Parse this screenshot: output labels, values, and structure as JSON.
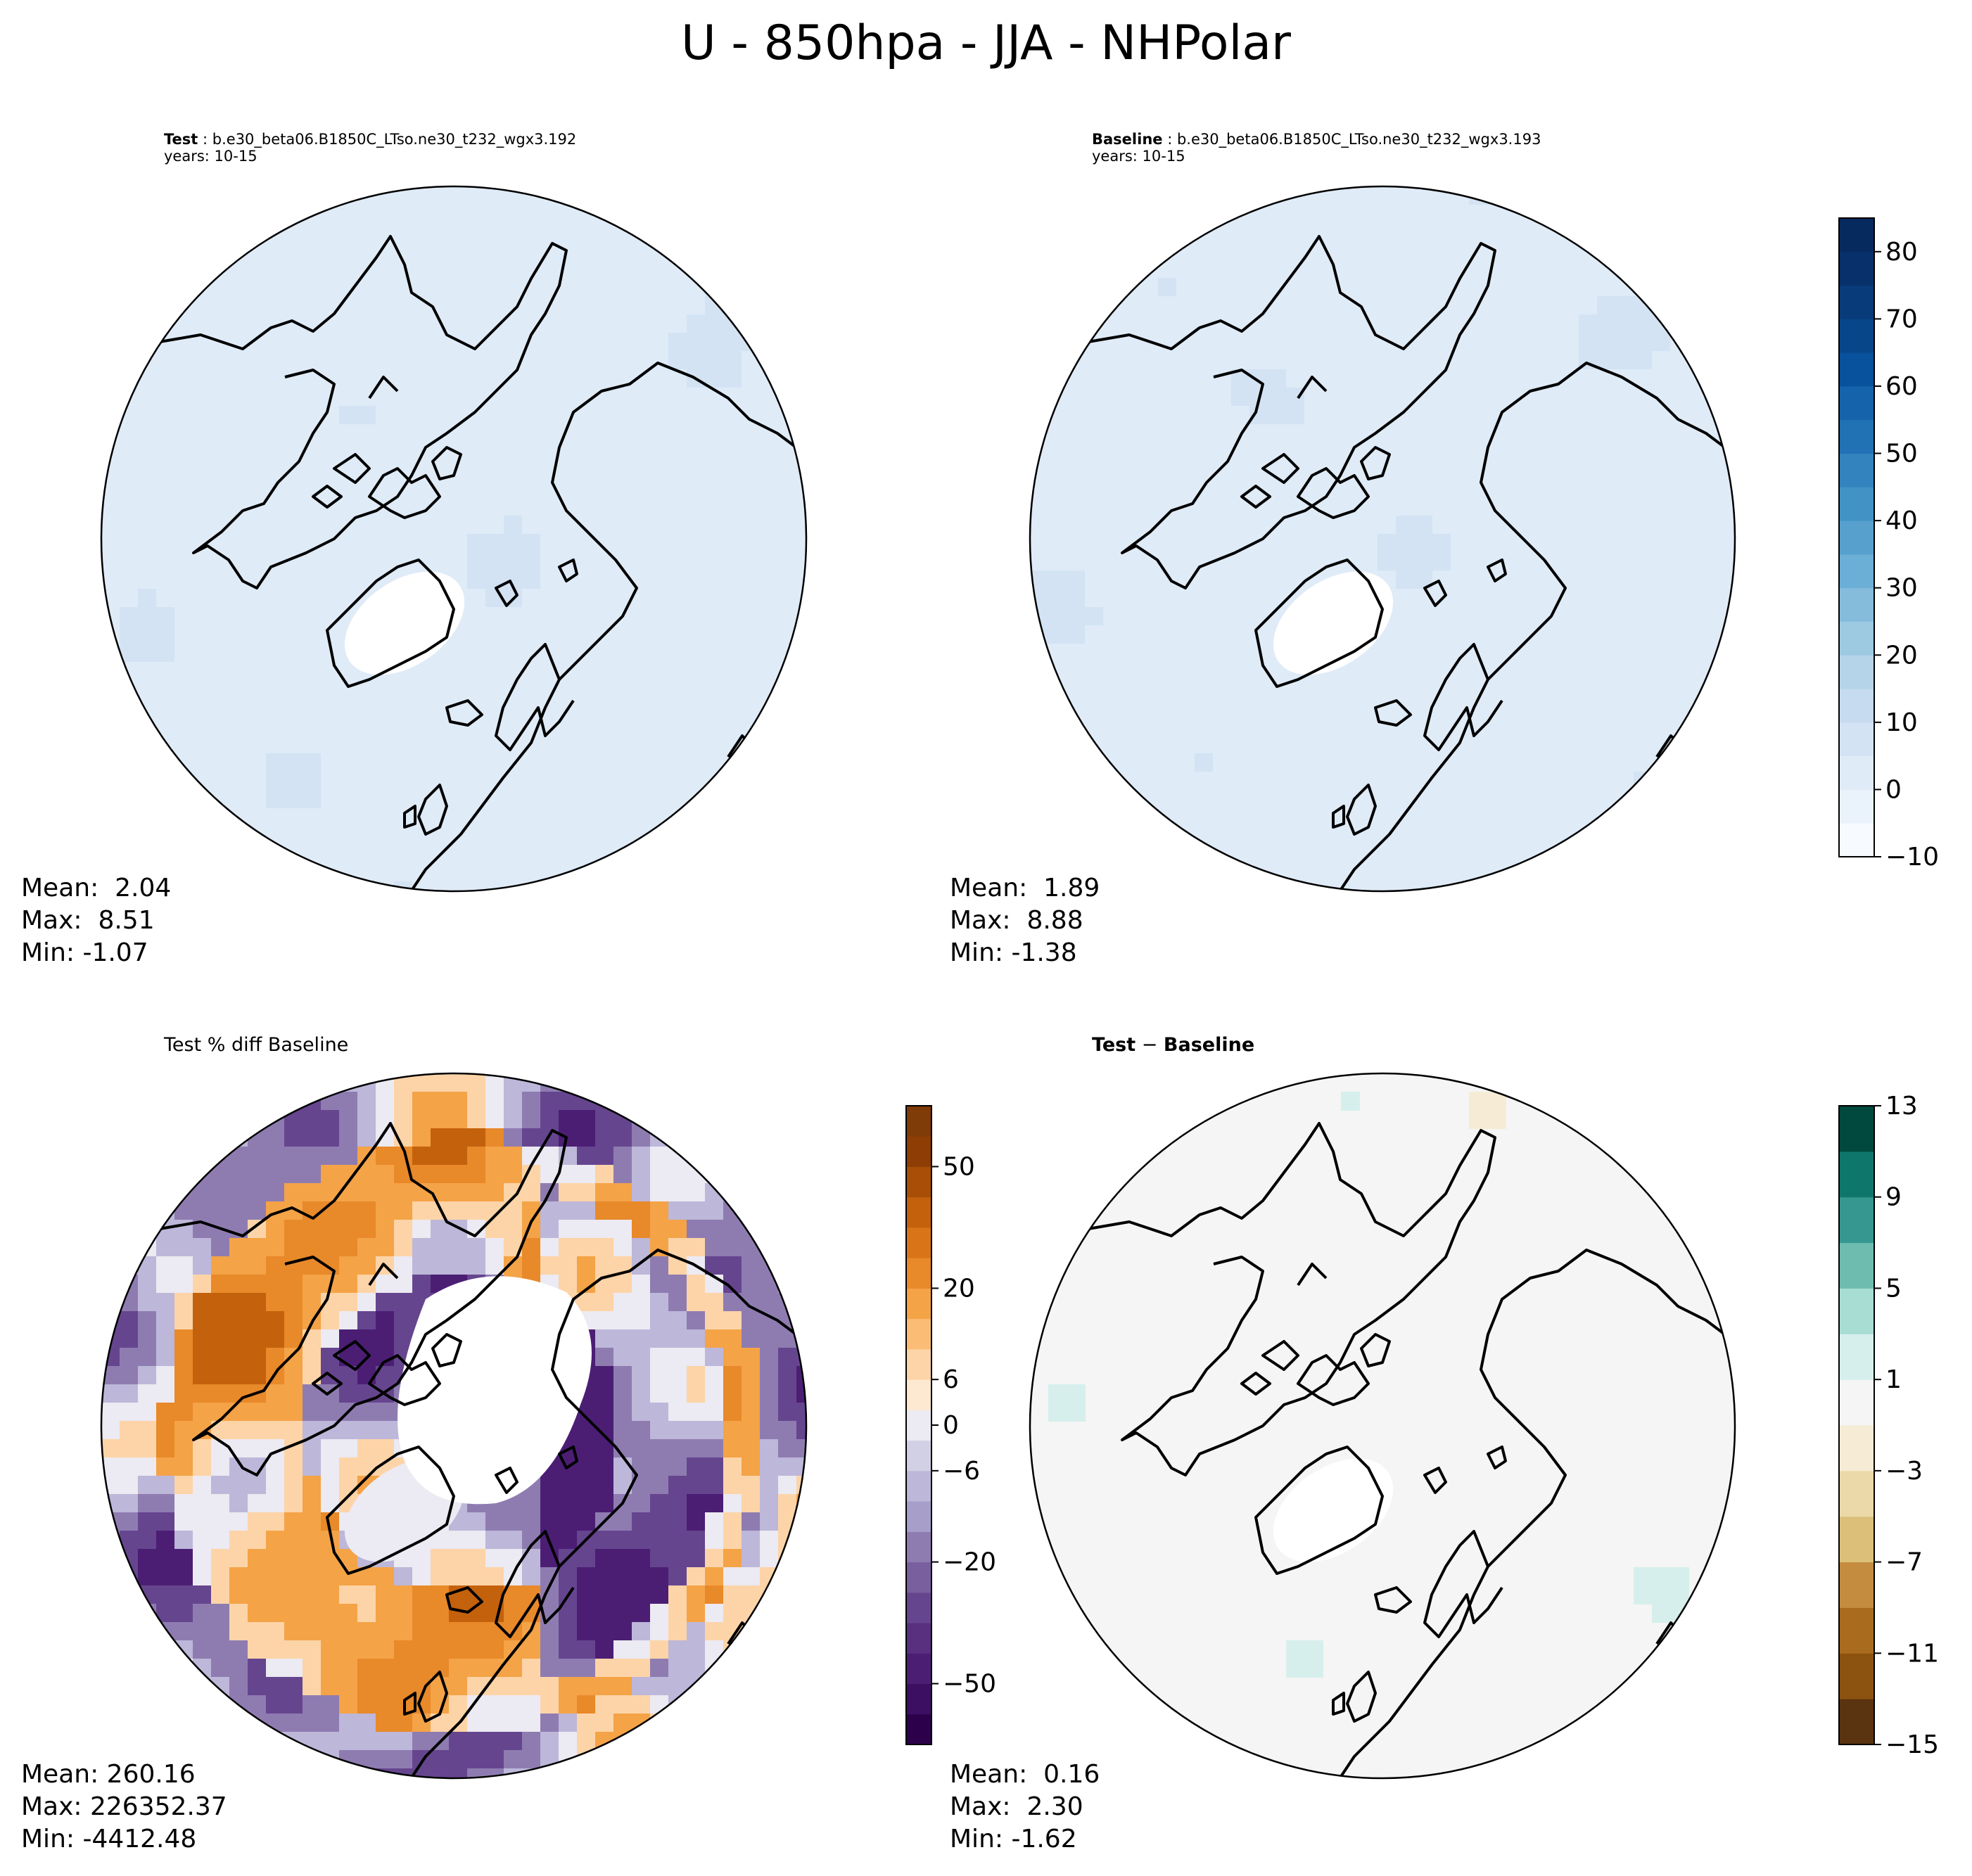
{
  "figure": {
    "suptitle": "U - 850hpa - JJA - NHPolar"
  },
  "panels": {
    "test": {
      "label": "Test",
      "case": "b.e30_beta06.B1850C_LTso.ne30_t232_wgx3.192",
      "years": "years: 10-15",
      "stats": {
        "mean": "Mean:  2.04",
        "max": "Max:  8.51",
        "min": "Min: -1.07"
      }
    },
    "baseline": {
      "label": "Baseline",
      "case": "b.e30_beta06.B1850C_LTso.ne30_t232_wgx3.193",
      "years": "years: 10-15",
      "stats": {
        "mean": "Mean:  1.89",
        "max": "Max:  8.88",
        "min": "Min: -1.38"
      }
    },
    "pctdiff": {
      "title": "Test % diff Baseline",
      "stats": {
        "mean": "Mean: 260.16",
        "max": "Max: 226352.37",
        "min": "Min: -4412.48"
      }
    },
    "diff": {
      "title_a": "Test",
      "title_sep": " − ",
      "title_b": "Baseline",
      "stats": {
        "mean": "Mean:  0.16",
        "max": "Max:  2.30",
        "min": "Min: -1.62"
      }
    }
  },
  "chart_data": [
    {
      "type": "heatmap",
      "name": "test",
      "projection": "north-polar-stereographic",
      "field_range_approx": [
        -1.07,
        8.51
      ],
      "colormap": "Blues",
      "colorbar": "shared with baseline"
    },
    {
      "type": "heatmap",
      "name": "baseline",
      "projection": "north-polar-stereographic",
      "field_range_approx": [
        -1.38,
        8.88
      ],
      "colormap": "Blues",
      "colorbar": {
        "range": [
          -10,
          85
        ],
        "ticks": [
          "−10",
          "0",
          "10",
          "20",
          "30",
          "40",
          "50",
          "60",
          "70",
          "80"
        ],
        "tick_values": [
          -10,
          0,
          10,
          20,
          30,
          40,
          50,
          60,
          70,
          80
        ],
        "levels": 19,
        "colors": [
          "#f7fbff",
          "#eaf3fb",
          "#dfebf7",
          "#d3e3f3",
          "#c6dbef",
          "#b5d4e9",
          "#9ecae1",
          "#85bcdc",
          "#6baed6",
          "#57a0ce",
          "#4292c6",
          "#3383be",
          "#2171b5",
          "#1563aa",
          "#08519c",
          "#08468a",
          "#083b7a",
          "#08306b",
          "#072a5e"
        ]
      }
    },
    {
      "type": "heatmap",
      "name": "pctdiff",
      "projection": "north-polar-stereographic",
      "colormap": "PuOr_r",
      "colorbar": {
        "ticks": [
          "−50",
          "−20",
          "−6",
          "0",
          "6",
          "20",
          "50"
        ],
        "tick_values": [
          -50,
          -20,
          -6,
          0,
          6,
          20,
          50
        ],
        "levels": 21,
        "colors": [
          "#2d004b",
          "#3c0f63",
          "#4b1e74",
          "#59307f",
          "#66458f",
          "#7a5f9e",
          "#8e7cb1",
          "#a79fc9",
          "#bdb7d9",
          "#d2d0e4",
          "#eceaf2",
          "#fde9d2",
          "#fdd4a8",
          "#fbbd75",
          "#f4a347",
          "#e8892a",
          "#d97518",
          "#c4610c",
          "#a94e07",
          "#8e3d05",
          "#7f3b08"
        ]
      }
    },
    {
      "type": "heatmap",
      "name": "diff",
      "projection": "north-polar-stereographic",
      "colormap": "BrBG",
      "colorbar": {
        "range": [
          -15,
          13
        ],
        "ticks": [
          "−15",
          "−11",
          "−7",
          "−3",
          "1",
          "5",
          "9",
          "13"
        ],
        "tick_values": [
          -15,
          -11,
          -7,
          -3,
          1,
          5,
          9,
          13
        ],
        "levels": 14,
        "colors": [
          "#5a3310",
          "#8c520f",
          "#a96b1e",
          "#c48c3f",
          "#dcbf79",
          "#ecd9a9",
          "#f6ecd5",
          "#f4f5f4",
          "#d6efec",
          "#a8ddd3",
          "#6ebcb0",
          "#35978f",
          "#0f766c",
          "#01483e"
        ]
      }
    }
  ],
  "coast_color": "#000000"
}
